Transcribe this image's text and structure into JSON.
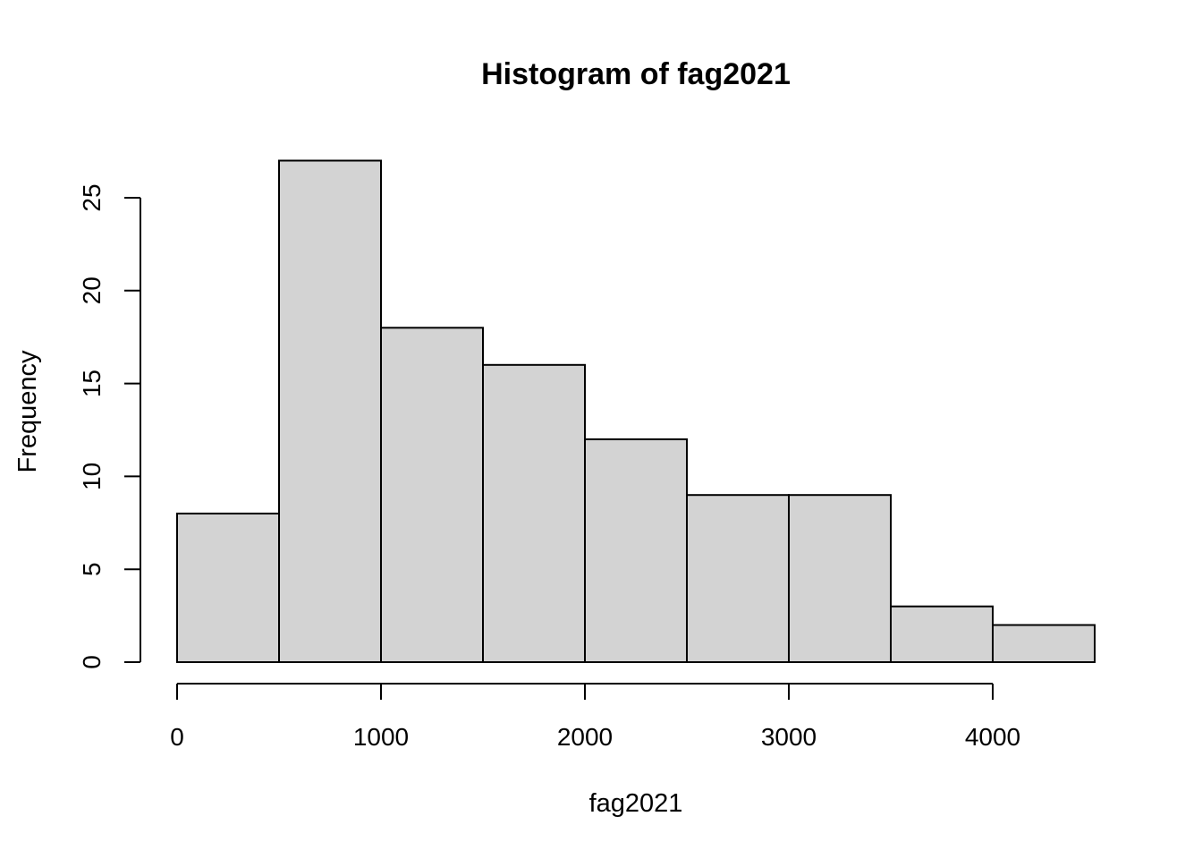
{
  "chart_data": {
    "type": "bar",
    "subtype": "histogram",
    "title": "Histogram of fag2021",
    "xlabel": "fag2021",
    "ylabel": "Frequency",
    "bin_edges": [
      0,
      500,
      1000,
      1500,
      2000,
      2500,
      3000,
      3500,
      4000,
      4500
    ],
    "values": [
      8,
      27,
      18,
      16,
      12,
      9,
      9,
      3,
      2
    ],
    "x_ticks": [
      0,
      1000,
      2000,
      3000,
      4000
    ],
    "x_tick_labels": [
      "0",
      "1000",
      "2000",
      "3000",
      "4000"
    ],
    "y_ticks": [
      0,
      5,
      10,
      15,
      20,
      25
    ],
    "y_tick_labels": [
      "0",
      "5",
      "10",
      "15",
      "20",
      "25"
    ],
    "xlim": [
      0,
      4500
    ],
    "ylim": [
      0,
      27
    ],
    "grid": false,
    "legend": false,
    "colors": {
      "bar_fill": "#d3d3d3",
      "bar_stroke": "#000000",
      "axis": "#000000",
      "text": "#000000",
      "background": "#ffffff"
    }
  }
}
